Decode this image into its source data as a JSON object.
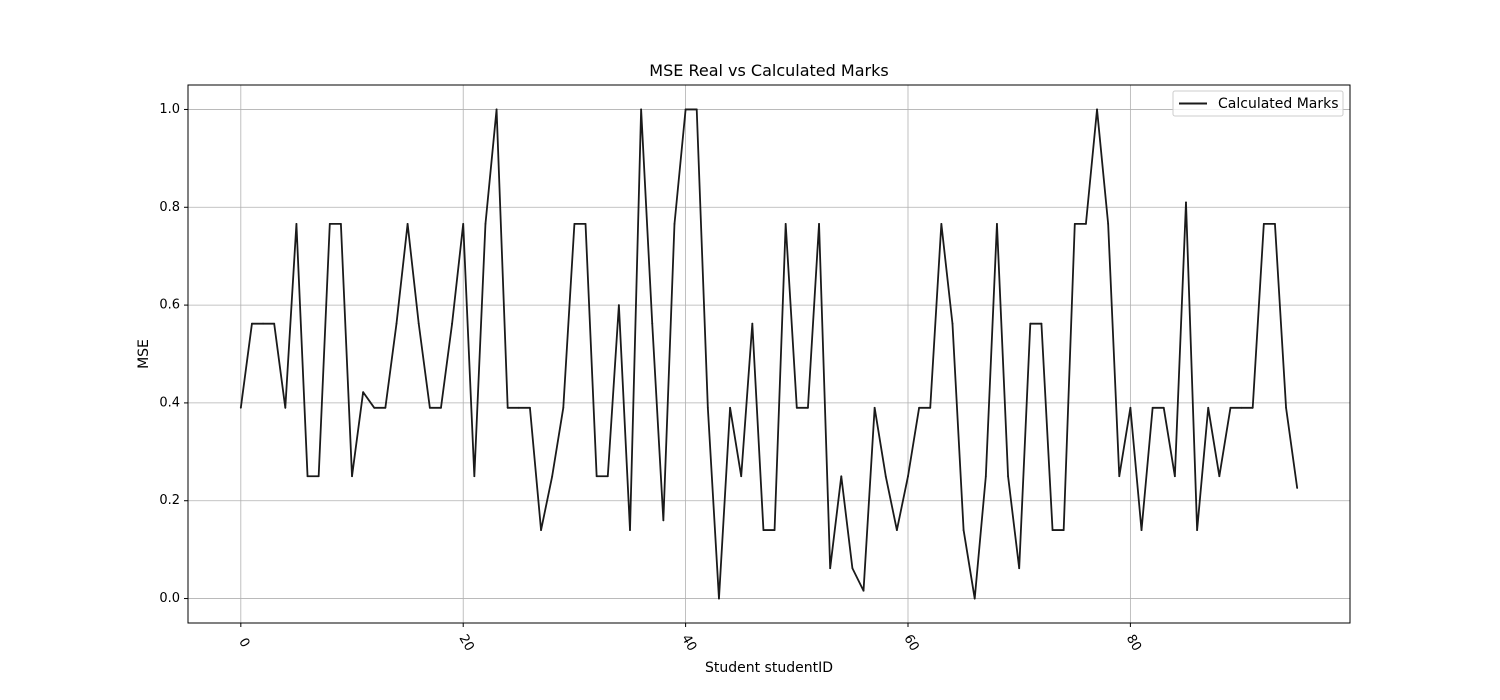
{
  "chart_data": {
    "type": "line",
    "title": "MSE Real vs Calculated Marks",
    "xlabel": "Student studentID",
    "ylabel": "MSE",
    "xlim": [
      -4.75,
      99.75
    ],
    "ylim": [
      -0.05,
      1.05
    ],
    "xticks": [
      0,
      20,
      40,
      60,
      80
    ],
    "yticks": [
      0.0,
      0.2,
      0.4,
      0.6,
      0.8,
      1.0
    ],
    "xtick_labels": [
      "0",
      "20",
      "40",
      "60",
      "80"
    ],
    "ytick_labels": [
      "0.0",
      "0.2",
      "0.4",
      "0.6",
      "0.8",
      "1.0"
    ],
    "xtick_rotation_deg": -60,
    "grid": true,
    "legend_position": "upper right",
    "series": [
      {
        "name": "Calculated Marks",
        "color": "#1a1a1a",
        "x": [
          0,
          1,
          2,
          3,
          4,
          5,
          6,
          7,
          8,
          9,
          10,
          11,
          12,
          13,
          14,
          15,
          16,
          17,
          18,
          19,
          20,
          21,
          22,
          23,
          24,
          25,
          26,
          27,
          28,
          29,
          30,
          31,
          32,
          33,
          34,
          35,
          36,
          37,
          38,
          39,
          40,
          41,
          42,
          43,
          44,
          45,
          46,
          47,
          48,
          49,
          50,
          51,
          52,
          53,
          54,
          55,
          56,
          57,
          58,
          59,
          60,
          61,
          62,
          63,
          64,
          65,
          66,
          67,
          68,
          69,
          70,
          71,
          72,
          73,
          74,
          75,
          76,
          77,
          78,
          79,
          80,
          81,
          82,
          83,
          84,
          85,
          86,
          87,
          88,
          89,
          90,
          91,
          92,
          93,
          94,
          95
        ],
        "values": [
          0.39,
          0.562,
          0.562,
          0.562,
          0.39,
          0.766,
          0.25,
          0.25,
          0.766,
          0.766,
          0.25,
          0.422,
          0.39,
          0.39,
          0.562,
          0.766,
          0.562,
          0.39,
          0.39,
          0.562,
          0.766,
          0.25,
          0.766,
          1.0,
          0.39,
          0.39,
          0.39,
          0.14,
          0.25,
          0.39,
          0.766,
          0.766,
          0.25,
          0.25,
          0.6,
          0.14,
          1.0,
          0.562,
          0.16,
          0.766,
          1.0,
          1.0,
          0.39,
          0.0,
          0.39,
          0.25,
          0.562,
          0.14,
          0.14,
          0.766,
          0.39,
          0.39,
          0.766,
          0.062,
          0.25,
          0.062,
          0.016,
          0.39,
          0.25,
          0.14,
          0.25,
          0.39,
          0.39,
          0.766,
          0.562,
          0.14,
          0.0,
          0.25,
          0.766,
          0.25,
          0.062,
          0.562,
          0.562,
          0.14,
          0.14,
          0.766,
          0.766,
          1.0,
          0.766,
          0.25,
          0.39,
          0.14,
          0.39,
          0.39,
          0.25,
          0.81,
          0.14,
          0.39,
          0.25,
          0.39,
          0.39,
          0.39,
          0.766,
          0.766,
          0.39,
          0.226
        ]
      }
    ]
  }
}
